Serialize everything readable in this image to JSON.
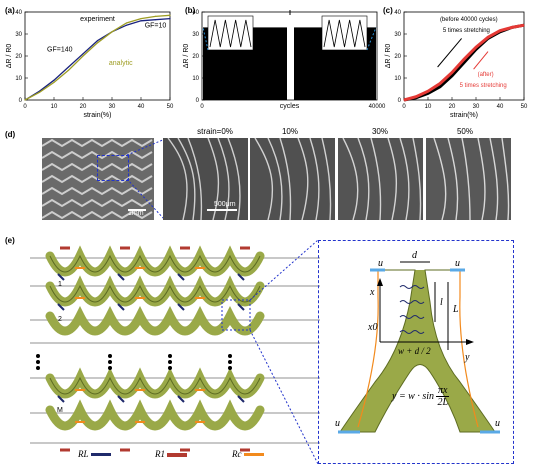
{
  "panels": {
    "a": {
      "label": "(a)"
    },
    "b": {
      "label": "(b)"
    },
    "c": {
      "label": "(c)"
    },
    "d": {
      "label": "(d)"
    },
    "e": {
      "label": "(e)"
    }
  },
  "chart_data": [
    {
      "id": "a",
      "type": "line",
      "ylabel": "ΔR / R0",
      "xlabel": "strain(%)",
      "xlim": [
        0,
        50
      ],
      "ylim": [
        0,
        40
      ],
      "xticks": [
        "0",
        "10",
        "20",
        "30",
        "40",
        "50"
      ],
      "yticks": [
        "0",
        "10",
        "20",
        "30",
        "40"
      ],
      "annotations": [
        "experiment",
        "GF=140",
        "GF=10",
        "analytic"
      ],
      "series": [
        {
          "name": "experiment",
          "color": "#1a237e",
          "x": [
            0,
            5,
            10,
            15,
            20,
            25,
            30,
            35,
            40,
            45,
            50
          ],
          "y": [
            0,
            4,
            9,
            15,
            21,
            27,
            31,
            34,
            36,
            36.5,
            37
          ]
        },
        {
          "name": "analytic",
          "color": "#9e9d24",
          "x": [
            0,
            5,
            10,
            15,
            20,
            25,
            30,
            35,
            40,
            45,
            50
          ],
          "y": [
            0,
            3.5,
            8,
            13.5,
            20,
            26,
            31,
            35,
            37,
            38,
            38.5
          ]
        }
      ]
    },
    {
      "id": "b",
      "type": "line",
      "ylabel": "ΔR / R0",
      "xlabel": "cycles",
      "xlim": [
        0,
        40000
      ],
      "ylim": [
        0,
        40
      ],
      "xticks": [
        "0",
        "40000"
      ],
      "yticks": [
        "0",
        "10",
        "20",
        "30",
        "40"
      ],
      "insets": [
        {
          "cycles": 4
        },
        {
          "cycles": 4
        }
      ]
    },
    {
      "id": "c",
      "type": "line",
      "ylabel": "ΔR / R0",
      "xlabel": "strain(%)",
      "xlim": [
        0,
        50
      ],
      "ylim": [
        0,
        40
      ],
      "xticks": [
        "0",
        "10",
        "20",
        "30",
        "40",
        "50"
      ],
      "yticks": [
        "0",
        "10",
        "20",
        "30",
        "40"
      ],
      "annotations": [
        "(before 40000 cycles)",
        "5 times stretching",
        "(after)",
        "5 times stretching"
      ],
      "series": [
        {
          "name": "before",
          "color": "#000000",
          "x": [
            0,
            5,
            10,
            15,
            20,
            25,
            30,
            35,
            40,
            45,
            50
          ],
          "y": [
            0,
            1,
            3,
            6,
            11,
            17,
            23,
            28,
            31,
            33,
            34
          ]
        },
        {
          "name": "after",
          "color": "#e53935",
          "x": [
            0,
            5,
            10,
            15,
            20,
            25,
            30,
            35,
            40,
            45,
            50
          ],
          "y": [
            0,
            1.5,
            4,
            7.5,
            12.5,
            18.5,
            24,
            28.5,
            31.5,
            33,
            34
          ]
        }
      ]
    }
  ],
  "sem": {
    "main_scale": "1mm",
    "zoom_scale": "500μm",
    "strain_labels": [
      "strain=0%",
      "10%",
      "30%",
      "50%"
    ]
  },
  "diagram": {
    "row_labels": [
      "1",
      "2",
      "M"
    ],
    "legend": [
      "RL",
      "R1",
      "Rc"
    ],
    "symbols": [
      "u",
      "u",
      "u",
      "u",
      "d",
      "x",
      "l",
      "L",
      "x0",
      "w + d / 2",
      "y"
    ],
    "equation_lhs": "y = w · sin",
    "equation_num": "πx",
    "equation_den": "2L",
    "colors": {
      "yarn": "#9aa948",
      "yarn_dark": "#5d6b22",
      "accent_red": "#b23a30",
      "accent_orange": "#f28a1d",
      "accent_navy": "#1f2a6b",
      "dash": "#2233cc"
    }
  }
}
